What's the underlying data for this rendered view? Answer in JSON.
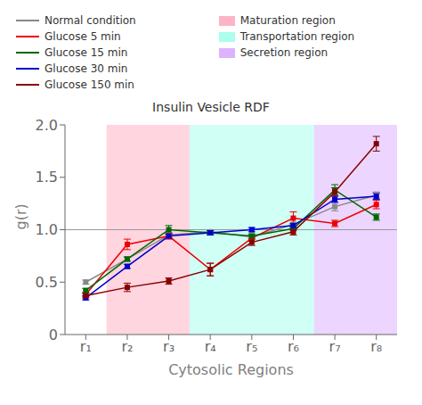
{
  "chart_data": {
    "type": "line",
    "title": "Insulin Vesicle RDF",
    "x_label": "Cytosolic Regions",
    "y_label": "g(r)",
    "x": [
      1,
      2,
      3,
      4,
      5,
      6,
      7,
      8
    ],
    "xlim": [
      0.5,
      8.5
    ],
    "xticks": [
      {
        "value": 1,
        "label": "r₁"
      },
      {
        "value": 2,
        "label": "r₂"
      },
      {
        "value": 3,
        "label": "r₃"
      },
      {
        "value": 4,
        "label": "r₄"
      },
      {
        "value": 5,
        "label": "r₅"
      },
      {
        "value": 6,
        "label": "r₆"
      },
      {
        "value": 7,
        "label": "r₇"
      },
      {
        "value": 8,
        "label": "r₈"
      }
    ],
    "ylim": [
      0,
      2.0
    ],
    "yticks": [
      0,
      0.5,
      {
        "value": 1,
        "label": "1.0"
      },
      1.5,
      {
        "value": 2,
        "label": "2.0"
      }
    ],
    "grid": false,
    "marker": "square",
    "series": [
      {
        "name": "Normal condition",
        "color": "#888888",
        "values": [
          0.5,
          0.72,
          0.95,
          0.98,
          0.93,
          1.05,
          1.22,
          1.33
        ],
        "errors": [
          0.02,
          0.02,
          0.02,
          0.02,
          0.02,
          0.02,
          0.04,
          0.03
        ]
      },
      {
        "name": "Glucose 5 min",
        "color": "#EE0000",
        "values": [
          0.38,
          0.86,
          0.94,
          0.62,
          0.92,
          1.11,
          1.06,
          1.24
        ],
        "errors": [
          0.02,
          0.05,
          0.03,
          0.06,
          0.03,
          0.06,
          0.03,
          0.04
        ]
      },
      {
        "name": "Glucose 15 min",
        "color": "#006600",
        "values": [
          0.42,
          0.72,
          1.0,
          0.97,
          0.94,
          1.01,
          1.38,
          1.12
        ],
        "errors": [
          0.02,
          0.02,
          0.04,
          0.02,
          0.02,
          0.02,
          0.05,
          0.03
        ]
      },
      {
        "name": "Glucose 30 min",
        "color": "#0000CC",
        "values": [
          0.35,
          0.65,
          0.94,
          0.97,
          1.0,
          1.04,
          1.29,
          1.32
        ],
        "errors": [
          0.02,
          0.02,
          0.02,
          0.02,
          0.02,
          0.02,
          0.03,
          0.03
        ]
      },
      {
        "name": "Glucose 150 min",
        "color": "#880000",
        "values": [
          0.37,
          0.45,
          0.51,
          0.62,
          0.88,
          0.98,
          1.36,
          1.82
        ],
        "errors": [
          0.02,
          0.04,
          0.03,
          0.06,
          0.03,
          0.03,
          0.04,
          0.07
        ]
      }
    ],
    "regions": [
      {
        "label": "Maturation region",
        "color": "#FFB3C6",
        "x_start": 1.5,
        "x_end": 3.5
      },
      {
        "label": "Transportation region",
        "color": "#AAFFEE",
        "x_start": 3.5,
        "x_end": 6.5
      },
      {
        "label": "Secretion region",
        "color": "#DDB3FF",
        "x_start": 6.5,
        "x_end": 8.5
      }
    ],
    "reference_line": {
      "y": 1,
      "color": "#999999"
    }
  }
}
